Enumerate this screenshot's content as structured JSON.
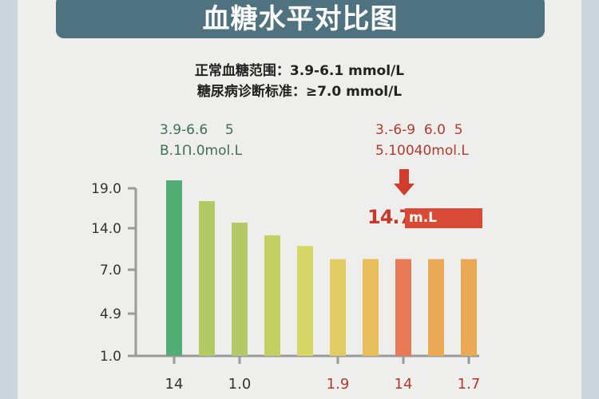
{
  "header": {
    "title": "血糖水平对比图"
  },
  "subtitle": {
    "line1": "正常血糖范围：3.9-6.1 mmol/L",
    "line2": "糖尿病诊断标准：≥7.0 mmol/L"
  },
  "annotations": {
    "left": {
      "line1": "3.9-6.6    5",
      "line2": "B.1Ո.0mol.L",
      "color": "#3f6f55"
    },
    "right": {
      "line1": "3.-6-9  6.0  5",
      "line2": "5.10040mol.L",
      "color": "#b43a2e"
    },
    "callout": {
      "value": "14.7",
      "unit": "m.L",
      "arrow_icon": "arrow-down-icon",
      "color": "#d94a36"
    }
  },
  "chart_data": {
    "type": "bar",
    "title": "血糖水平对比图",
    "y_ticks": [
      "1.0",
      "4.9",
      "7.0",
      "14.0",
      "19.0"
    ],
    "y_tick_values": [
      1.0,
      4.9,
      7.0,
      14.0,
      19.0
    ],
    "y_scale": "nonlinear (equally spaced ticks)",
    "values": [
      20.0,
      17.4,
      14.7,
      12.8,
      11.0,
      8.8,
      8.8,
      8.8,
      8.8,
      8.8
    ],
    "colors": [
      "#52ad74",
      "#b3c964",
      "#b5c767",
      "#c3d062",
      "#d6d766",
      "#e2cd64",
      "#e9bf5c",
      "#e87b55",
      "#eaa955",
      "#eaa955"
    ],
    "x_tick_labels": [
      {
        "bar": 0,
        "label": "14",
        "color": "#333333"
      },
      {
        "bar": 2,
        "label": "1.0",
        "color": "#333333"
      },
      {
        "bar": 5,
        "label": "1.9",
        "color": "#b43a2e"
      },
      {
        "bar": 7,
        "label": "14",
        "color": "#b43a2e"
      },
      {
        "bar": 9,
        "label": "1.7",
        "color": "#b43a2e"
      }
    ],
    "grid": false,
    "legend": "none"
  }
}
